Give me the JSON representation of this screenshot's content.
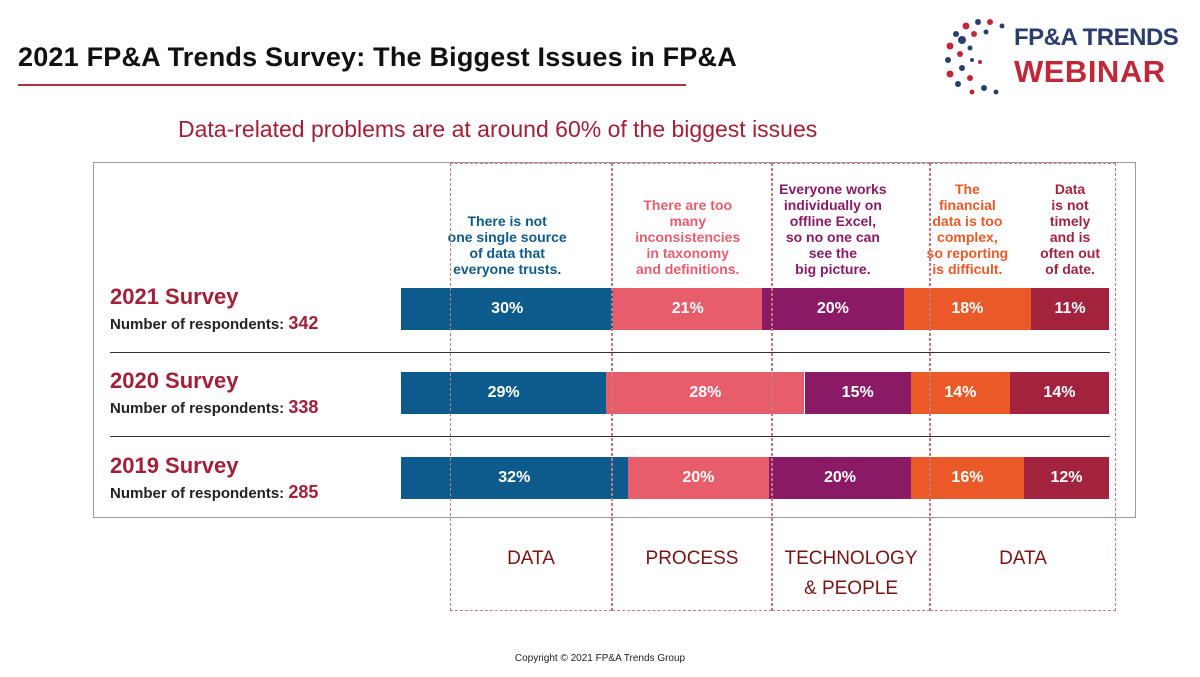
{
  "title": "2021 FP&A Trends Survey: The Biggest Issues in FP&A",
  "logo": {
    "line1": "FP&A TRENDS",
    "line2": "WEBINAR"
  },
  "subtitle": "Data-related problems are at around 60% of the biggest issues",
  "footer": "Copyright © 2021 FP&A Trends Group",
  "colors": {
    "accent": "#a31f37",
    "s1": "#0d5a8c",
    "s2": "#e85d6c",
    "s3": "#8a1a66",
    "s4": "#ea5a28",
    "s5": "#a3233f"
  },
  "chart_data": {
    "type": "bar",
    "orientation": "horizontal-stacked-100",
    "categories": [
      "2021 Survey",
      "2020 Survey",
      "2019 Survey"
    ],
    "respondents_label": "Number of respondents:",
    "respondents": [
      342,
      338,
      285
    ],
    "series": [
      {
        "name": "There is not\none single source\nof data that\neveryone trusts.",
        "values": [
          30,
          29,
          32
        ],
        "labels": [
          "30%",
          "29%",
          "32%"
        ],
        "color": "#0d5a8c"
      },
      {
        "name": "There are too\nmany\ninconsistencies\nin taxonomy\nand definitions.",
        "values": [
          21,
          28,
          20
        ],
        "labels": [
          "21%",
          "28%",
          "20%"
        ],
        "color": "#e85d6c"
      },
      {
        "name": "Everyone works\nindividually on\noffline Excel,\nso no one can\nsee the\nbig picture.",
        "values": [
          20,
          15,
          20
        ],
        "labels": [
          "20%",
          "15%",
          "20%"
        ],
        "color": "#8a1a66"
      },
      {
        "name": "The\nfinancial\ndata is too\ncomplex,\nso reporting\nis difficult.",
        "values": [
          18,
          14,
          16
        ],
        "labels": [
          "18%",
          "14%",
          "16%"
        ],
        "color": "#ea5a28"
      },
      {
        "name": "Data\nis not\ntimely\nand is\noften out\nof date.",
        "values": [
          11,
          14,
          12
        ],
        "labels": [
          "11%",
          "14%",
          "12%"
        ],
        "color": "#a3233f"
      }
    ],
    "groups": [
      "DATA",
      "PROCESS",
      "TECHNOLOGY\n& PEOPLE",
      "DATA"
    ]
  }
}
